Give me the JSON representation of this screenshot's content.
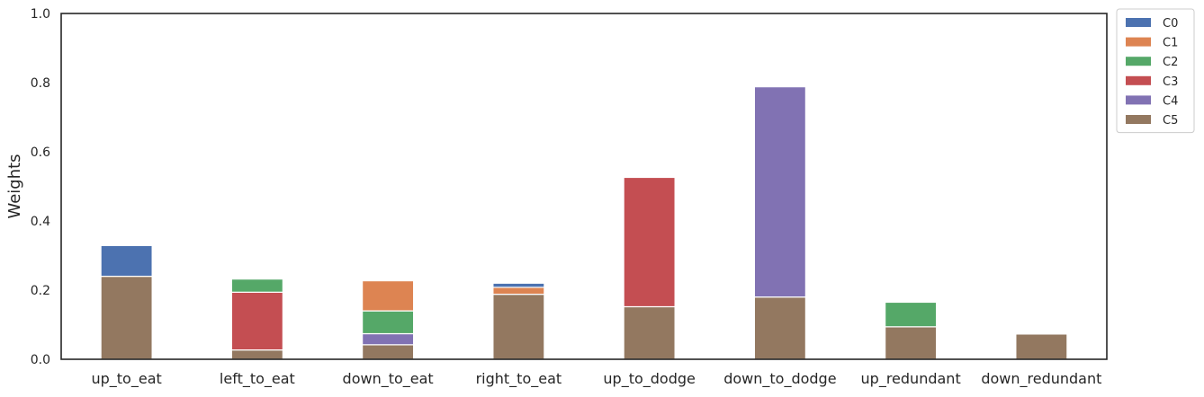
{
  "chart_data": {
    "type": "bar",
    "stacked": true,
    "categories": [
      "up_to_eat",
      "left_to_eat",
      "down_to_eat",
      "right_to_eat",
      "up_to_dodge",
      "down_to_dodge",
      "up_redundant",
      "down_redundant"
    ],
    "ylabel": "Weights",
    "xlabel": "",
    "ylim": [
      0,
      1.0
    ],
    "yticks": [
      "0.0",
      "0.2",
      "0.4",
      "0.6",
      "0.8",
      "1.0"
    ],
    "grid": false,
    "legend_position": "outside top-right",
    "series": [
      {
        "name": "C5",
        "color": "#937860",
        "values": [
          0.24,
          0.027,
          0.042,
          0.188,
          0.152,
          0.18,
          0.094,
          0.073
        ]
      },
      {
        "name": "C4",
        "color": "#8172b3",
        "values": [
          0,
          0,
          0.032,
          0,
          0,
          0.608,
          0,
          0
        ]
      },
      {
        "name": "C3",
        "color": "#c44e52",
        "values": [
          0,
          0.167,
          0,
          0,
          0.374,
          0,
          0,
          0
        ]
      },
      {
        "name": "C2",
        "color": "#55a868",
        "values": [
          0,
          0.038,
          0.066,
          0,
          0,
          0,
          0.071,
          0
        ]
      },
      {
        "name": "C1",
        "color": "#dd8452",
        "values": [
          0,
          0,
          0.087,
          0.02,
          0,
          0,
          0,
          0
        ]
      },
      {
        "name": "C0",
        "color": "#4c72b0",
        "values": [
          0.089,
          0,
          0,
          0.012,
          0,
          0,
          0,
          0
        ]
      }
    ],
    "legend": [
      {
        "name": "C0",
        "color": "#4c72b0"
      },
      {
        "name": "C1",
        "color": "#dd8452"
      },
      {
        "name": "C2",
        "color": "#55a868"
      },
      {
        "name": "C3",
        "color": "#c44e52"
      },
      {
        "name": "C4",
        "color": "#8172b3"
      },
      {
        "name": "C5",
        "color": "#937860"
      }
    ]
  }
}
